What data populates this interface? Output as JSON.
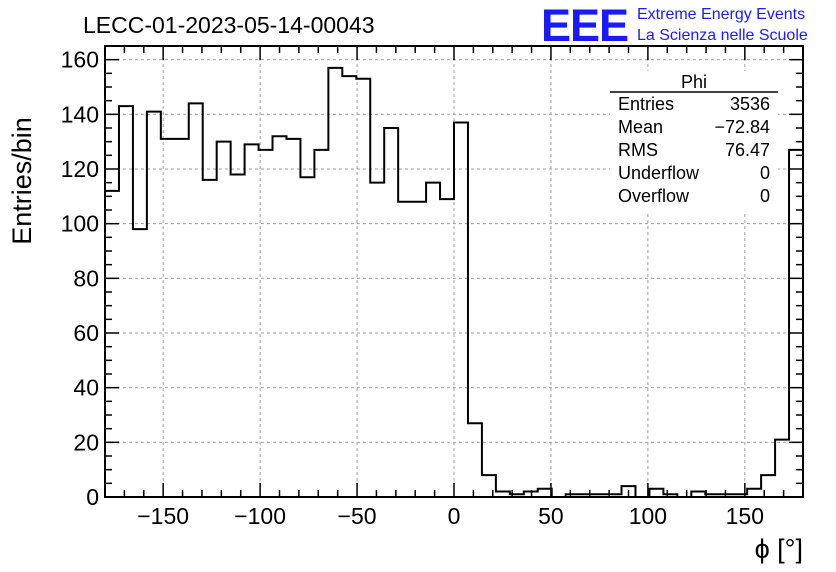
{
  "logo": {
    "letters": "EEE",
    "line1": "Extreme Energy Events",
    "line2": "La Scienza nelle Scuole",
    "color": "#1a1aff"
  },
  "chart_data": {
    "type": "bar",
    "title": "LECC-01-2023-05-14-00043",
    "xlabel": "ϕ [°]",
    "ylabel": "Entries/bin",
    "xlim": [
      -180,
      180
    ],
    "ylim": [
      0,
      165
    ],
    "xticks": [
      -150,
      -100,
      -50,
      0,
      50,
      100,
      150
    ],
    "yticks": [
      0,
      20,
      40,
      60,
      80,
      100,
      120,
      140,
      160
    ],
    "grid": true,
    "bin_width": 7.2,
    "values": [
      112,
      143,
      98,
      141,
      131,
      131,
      144,
      116,
      130,
      118,
      129,
      127,
      132,
      131,
      117,
      127,
      157,
      154,
      153,
      115,
      135,
      108,
      108,
      115,
      109,
      137,
      27,
      8,
      2,
      1,
      2,
      3,
      0,
      1,
      1,
      1,
      1,
      4,
      0,
      3,
      1,
      0,
      2,
      1,
      1,
      1,
      3,
      8,
      21,
      127
    ],
    "stats": {
      "name": "Phi",
      "rows": [
        {
          "label": "Entries",
          "value": "3536"
        },
        {
          "label": "Mean",
          "value": "−72.84"
        },
        {
          "label": "RMS",
          "value": "76.47"
        },
        {
          "label": "Underflow",
          "value": "0"
        },
        {
          "label": "Overflow",
          "value": "0"
        }
      ]
    }
  }
}
